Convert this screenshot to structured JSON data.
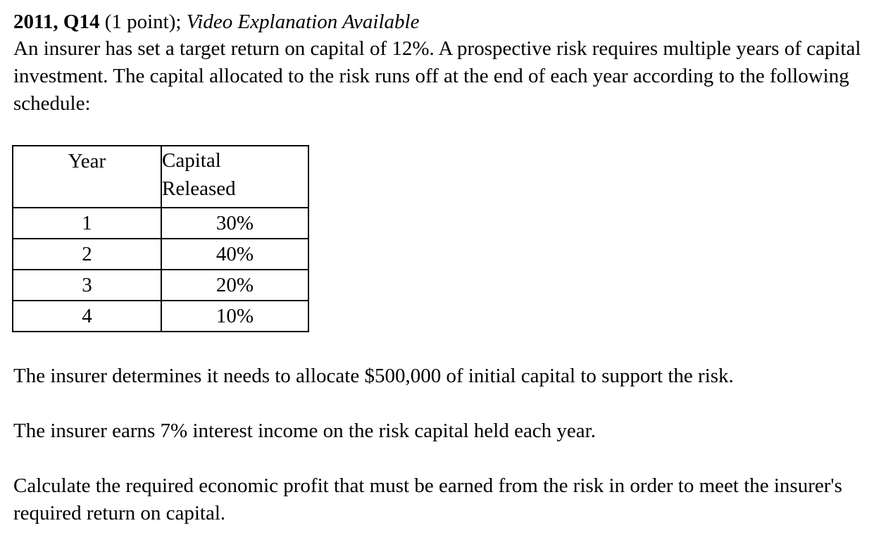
{
  "question": {
    "id_label": "2011, Q14",
    "points_label": "(1 point);",
    "video_label": "Video Explanation Available",
    "intro": "An insurer has set a target return on capital of 12%. A prospective risk requires multiple years of capital investment. The capital allocated to the risk runs off at the end of each year according to the following schedule:"
  },
  "schedule_table": {
    "headers": {
      "year": "Year",
      "capital_line1": "Capital",
      "capital_line2": "Released"
    },
    "rows": [
      {
        "year": "1",
        "released": "30%"
      },
      {
        "year": "2",
        "released": "40%"
      },
      {
        "year": "3",
        "released": "20%"
      },
      {
        "year": "4",
        "released": "10%"
      }
    ]
  },
  "paragraphs": {
    "initial_capital": "The insurer determines it needs to allocate $500,000 of initial capital to support the risk.",
    "interest": "The insurer earns 7% interest income on the risk capital held each year.",
    "task": "Calculate the required economic profit that must be earned from the risk in order to meet the insurer's required return on capital."
  }
}
